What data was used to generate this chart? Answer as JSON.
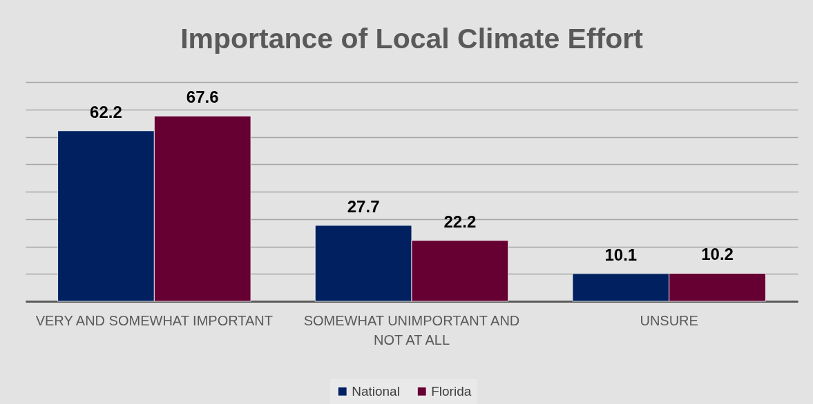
{
  "chart_data": {
    "type": "bar",
    "title": "Importance of Local Climate Effort",
    "categories": [
      "VERY AND SOMEWHAT IMPORTANT",
      "SOMEWHAT UNIMPORTANT AND NOT AT ALL",
      "UNSURE"
    ],
    "series": [
      {
        "name": "National",
        "color": "#002060",
        "values": [
          62.2,
          27.7,
          10.1
        ]
      },
      {
        "name": "Florida",
        "color": "#660033",
        "values": [
          67.6,
          22.2,
          10.2
        ]
      }
    ],
    "ylim": [
      0,
      80
    ],
    "yticks": [
      {
        "value": 0,
        "label": null
      },
      {
        "value": 10,
        "label": null
      },
      {
        "value": 20,
        "label": null
      },
      {
        "value": 30,
        "label": null
      },
      {
        "value": 40,
        "label": null
      },
      {
        "value": 50,
        "label": null
      },
      {
        "value": 60,
        "label": null
      },
      {
        "value": 70,
        "label": null
      },
      {
        "value": 80,
        "label": null
      }
    ],
    "tick_labels": "x",
    "grid": "y",
    "legend": "bottom",
    "data_labels": true
  }
}
